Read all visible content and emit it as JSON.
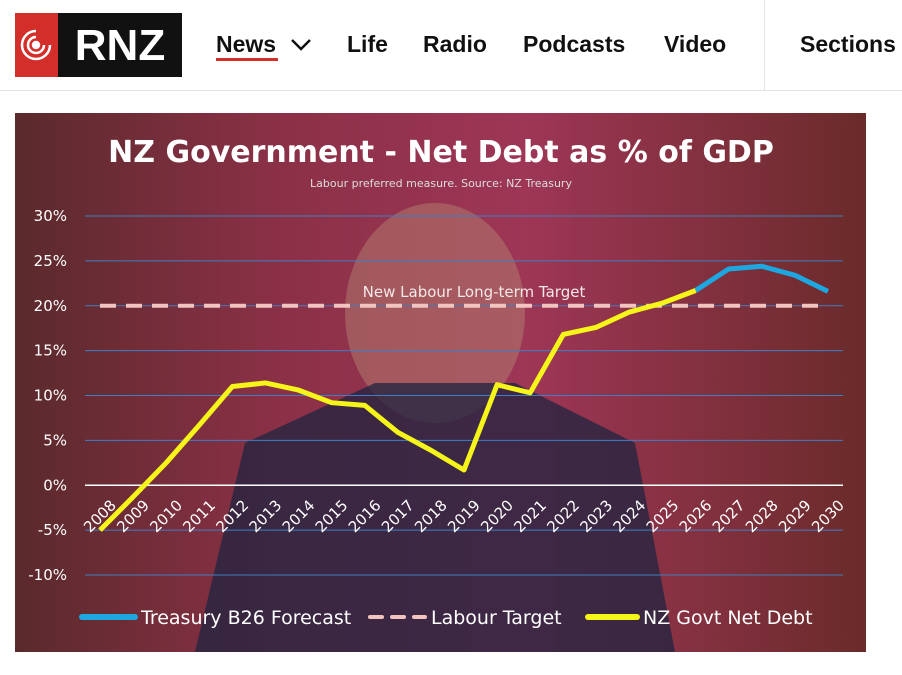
{
  "header": {
    "logo": "RNZ",
    "nav": [
      "News",
      "Life",
      "Radio",
      "Podcasts",
      "Video",
      "Sections"
    ]
  },
  "chart_data": {
    "type": "line",
    "title": "NZ Government - Net Debt as % of GDP",
    "subtitle": "Labour preferred measure. Source: NZ Treasury",
    "annotation": "New Labour Long-term Target",
    "categories": [
      "2008",
      "2009",
      "2010",
      "2011",
      "2012",
      "2013",
      "2014",
      "2015",
      "2016",
      "2017",
      "2018",
      "2019",
      "2020",
      "2021",
      "2022",
      "2023",
      "2024",
      "2025",
      "2026",
      "2027",
      "2028",
      "2029",
      "2030"
    ],
    "series": [
      {
        "name": "Treasury B26 Forecast",
        "color": "#1ca7e0",
        "dashed": false,
        "values": [
          null,
          null,
          null,
          null,
          null,
          null,
          null,
          null,
          null,
          null,
          null,
          null,
          null,
          null,
          null,
          null,
          null,
          null,
          21.7,
          24.1,
          24.4,
          23.4,
          21.6
        ]
      },
      {
        "name": "Labour Target",
        "color": "#f2c4c0",
        "dashed": true,
        "values": [
          20,
          20,
          20,
          20,
          20,
          20,
          20,
          20,
          20,
          20,
          20,
          20,
          20,
          20,
          20,
          20,
          20,
          20,
          20,
          20,
          20,
          20,
          20
        ]
      },
      {
        "name": "NZ Govt Net Debt",
        "color": "#f5f51a",
        "dashed": false,
        "values": [
          -5,
          -1.3,
          2.5,
          6.7,
          11,
          11.4,
          10.6,
          9.2,
          8.9,
          5.9,
          3.9,
          1.7,
          11.2,
          10.3,
          16.8,
          17.6,
          19.3,
          20.3,
          21.7,
          null,
          null,
          null,
          null
        ]
      }
    ],
    "ylim": [
      -10,
      30
    ],
    "yticks": [
      {
        "value": -10,
        "label": "-10%"
      },
      {
        "value": -5,
        "label": "-5%"
      },
      {
        "value": 0,
        "label": "0%"
      },
      {
        "value": 5,
        "label": "5%"
      },
      {
        "value": 10,
        "label": "10%"
      },
      {
        "value": 15,
        "label": "15%"
      },
      {
        "value": 20,
        "label": "20%"
      },
      {
        "value": 25,
        "label": "25%"
      },
      {
        "value": 30,
        "label": "30%"
      }
    ],
    "grid": true
  }
}
